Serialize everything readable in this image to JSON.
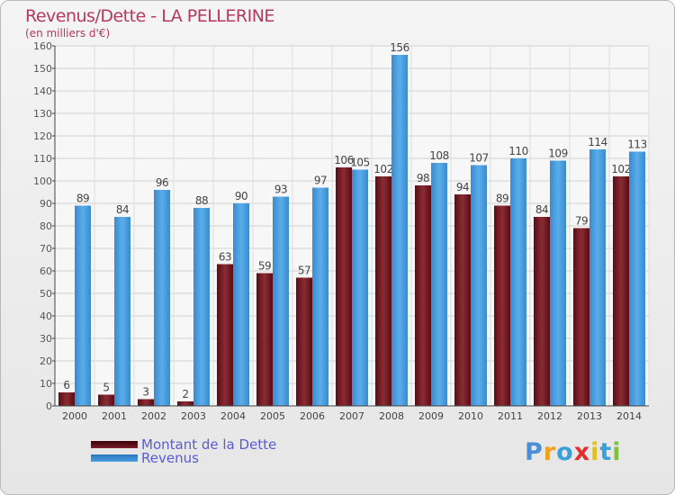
{
  "header": {
    "title": "Revenus/Dette - LA PELLERINE",
    "subtitle": "(en milliers d'€)"
  },
  "logo": {
    "text": "Proxiti",
    "colors": [
      "#4a8fd8",
      "#f0a020",
      "#3aa0d8",
      "#e03030",
      "#e0c020",
      "#3aa0d8",
      "#80c040"
    ]
  },
  "chart_data": {
    "type": "bar",
    "categories": [
      "2000",
      "2001",
      "2002",
      "2003",
      "2004",
      "2005",
      "2006",
      "2007",
      "2008",
      "2009",
      "2010",
      "2011",
      "2012",
      "2013",
      "2014"
    ],
    "series": [
      {
        "name": "Montant de la Dette",
        "color": "#7a1f2a",
        "values": [
          6,
          5,
          3,
          2,
          63,
          59,
          57,
          106,
          102,
          98,
          94,
          89,
          84,
          79,
          102
        ]
      },
      {
        "name": "Revenus",
        "color": "#4a9ee0",
        "values": [
          89,
          84,
          96,
          88,
          90,
          93,
          97,
          105,
          156,
          108,
          107,
          110,
          109,
          114,
          113
        ]
      }
    ],
    "ylim": [
      0,
      160
    ],
    "yticks": [
      0,
      10,
      20,
      30,
      40,
      50,
      60,
      70,
      80,
      90,
      100,
      110,
      120,
      130,
      140,
      150,
      160
    ],
    "grid": true,
    "legend": "bottom-left"
  }
}
